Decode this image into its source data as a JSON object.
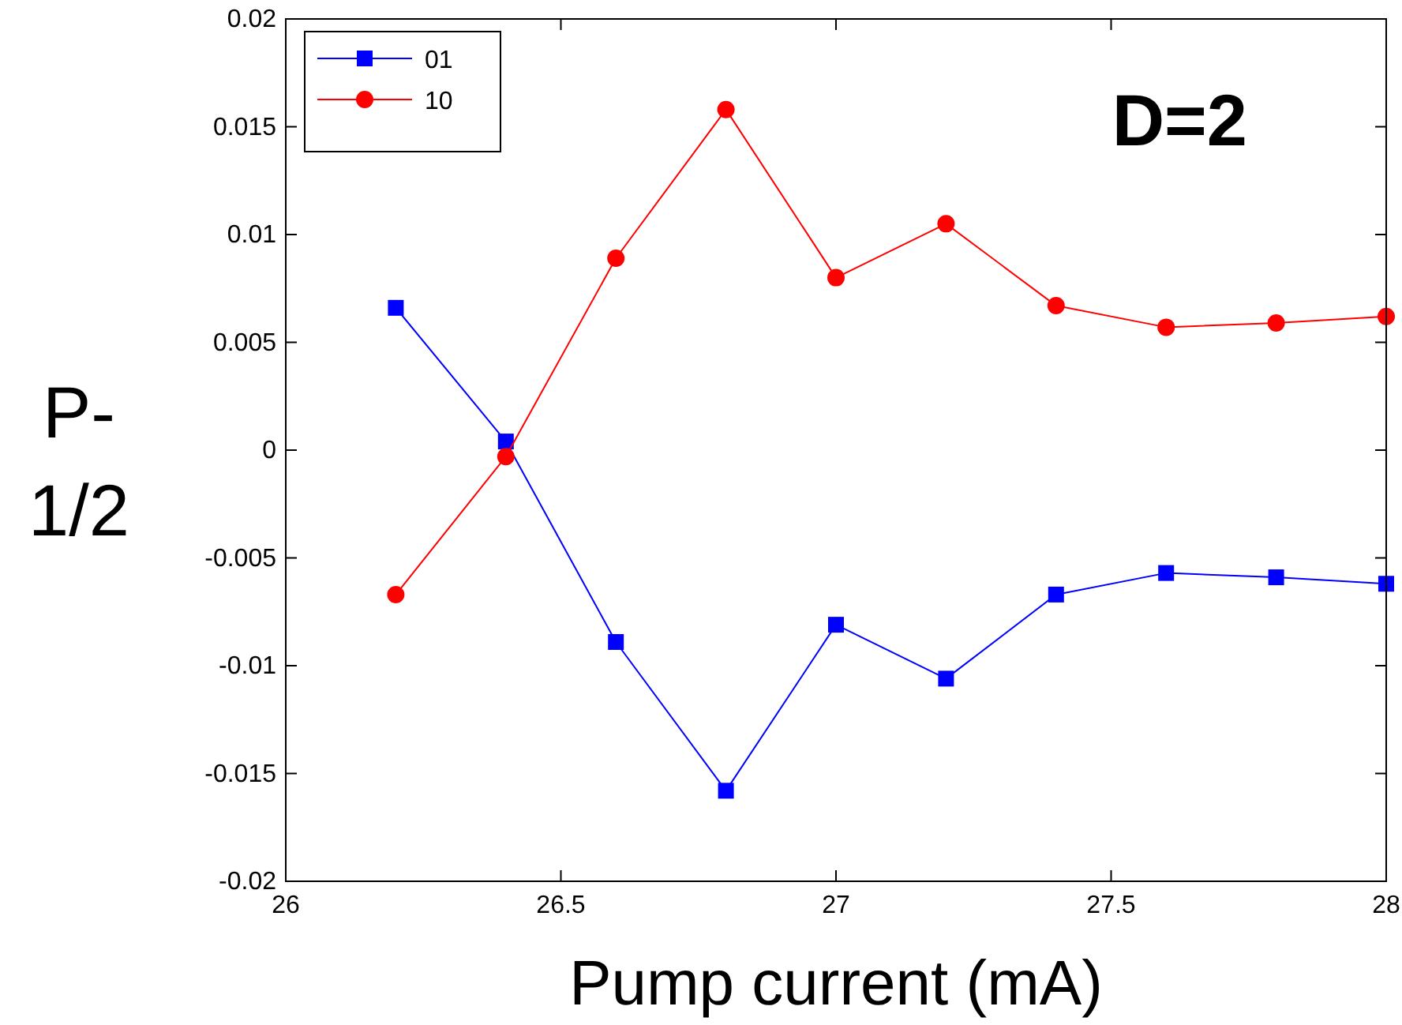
{
  "chart_data": {
    "type": "line",
    "xlabel": "Pump current  (mA)",
    "ylabel": "P-1/2",
    "annotations": [
      "D=2"
    ],
    "x": [
      26.2,
      26.4,
      26.6,
      26.8,
      27.0,
      27.2,
      27.4,
      27.6,
      27.8,
      28.0
    ],
    "series": [
      {
        "name": "01",
        "color": "#0000ff",
        "marker": "square",
        "values": [
          0.0066,
          0.0004,
          -0.0089,
          -0.0158,
          -0.0081,
          -0.0106,
          -0.0067,
          -0.0057,
          -0.0059,
          -0.0062
        ]
      },
      {
        "name": "10",
        "color": "#ff0000",
        "marker": "circle",
        "values": [
          -0.0067,
          -0.0003,
          0.0089,
          0.0158,
          0.008,
          0.0105,
          0.0067,
          0.0057,
          0.0059,
          0.0062
        ]
      }
    ],
    "xlim": [
      26,
      28
    ],
    "xticks": [
      26,
      26.5,
      27,
      27.5,
      28
    ],
    "ylim": [
      -0.02,
      0.02
    ],
    "yticks": [
      -0.02,
      -0.015,
      -0.01,
      -0.005,
      0,
      0.005,
      0.01,
      0.015,
      0.02
    ],
    "legend": "top left",
    "grid": false,
    "line_style": "solid"
  }
}
